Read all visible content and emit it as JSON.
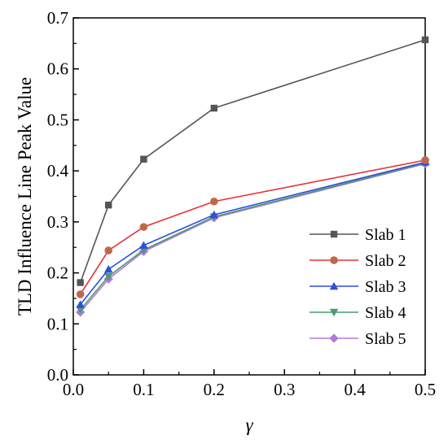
{
  "chart_data": {
    "type": "line",
    "xlabel": "γ",
    "ylabel": "TLD Influence Line Peak Value",
    "xlim": [
      0.0,
      0.5
    ],
    "ylim": [
      0.0,
      0.7
    ],
    "x_ticks": [
      "0.0",
      "0.1",
      "0.2",
      "0.3",
      "0.4",
      "0.5"
    ],
    "y_ticks": [
      "0.0",
      "0.1",
      "0.2",
      "0.3",
      "0.4",
      "0.5",
      "0.6",
      "0.7"
    ],
    "grid": false,
    "legend_position": "lower-right",
    "x": [
      0.01,
      0.05,
      0.1,
      0.2,
      0.5
    ],
    "series": [
      {
        "name": "Slab 1",
        "marker": "square",
        "line_color": "#555555",
        "marker_color": "#555555",
        "values": [
          0.181,
          0.333,
          0.423,
          0.523,
          0.657
        ]
      },
      {
        "name": "Slab 2",
        "marker": "circle",
        "line_color": "#e8313a",
        "marker_color": "#c0664a",
        "values": [
          0.158,
          0.244,
          0.29,
          0.34,
          0.421
        ]
      },
      {
        "name": "Slab 3",
        "marker": "triangle-up",
        "line_color": "#2f4fd8",
        "marker_color": "#2f4fd8",
        "values": [
          0.138,
          0.207,
          0.254,
          0.314,
          0.417
        ]
      },
      {
        "name": "Slab 4",
        "marker": "triangle-down",
        "line_color": "#4a9a72",
        "marker_color": "#4a9a72",
        "values": [
          0.128,
          0.193,
          0.245,
          0.31,
          0.415
        ]
      },
      {
        "name": "Slab 5",
        "marker": "diamond",
        "line_color": "#b07ad8",
        "marker_color": "#b07ad8",
        "values": [
          0.123,
          0.188,
          0.242,
          0.308,
          0.414
        ]
      }
    ]
  }
}
